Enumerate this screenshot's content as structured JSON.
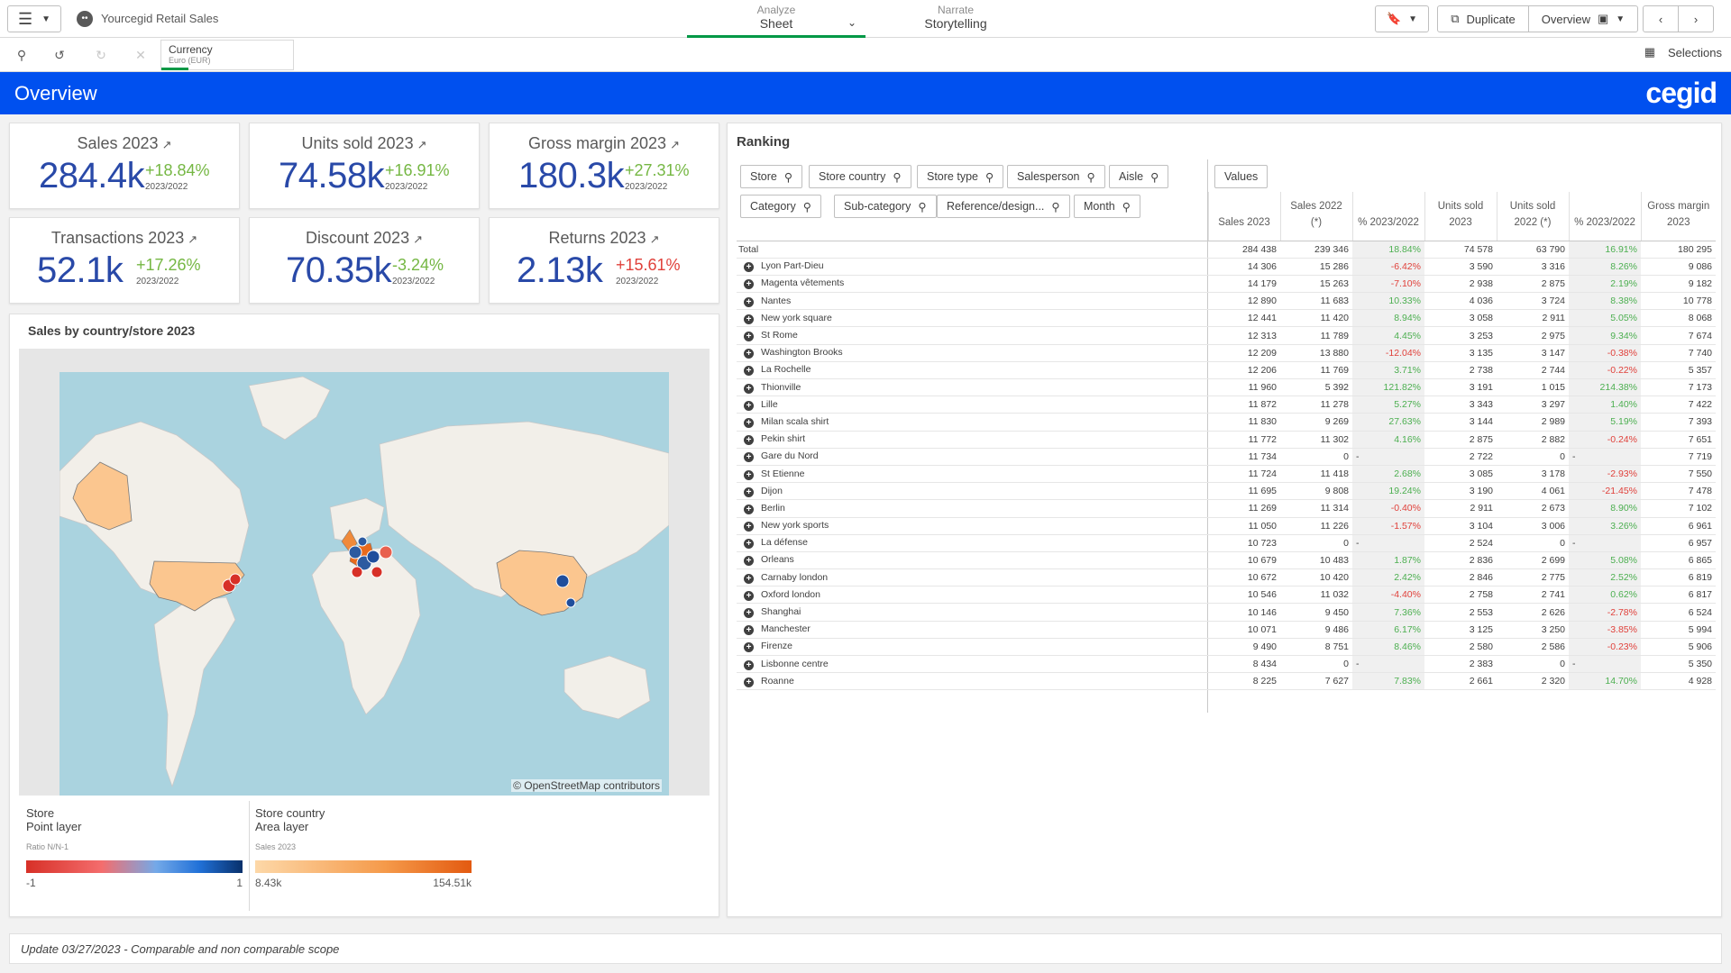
{
  "topbar": {
    "app_title": "Yourcegid Retail Sales",
    "analyze_small": "Analyze",
    "analyze_big": "Sheet",
    "narrate_small": "Narrate",
    "narrate_big": "Storytelling",
    "duplicate_label": "Duplicate",
    "overview_label": "Overview",
    "icons": [
      "menu-icon",
      "app-logo-icon",
      "bookmark-icon",
      "duplicate-icon",
      "presentation-icon",
      "chevron-left-icon",
      "chevron-right-icon"
    ]
  },
  "toolbar": {
    "currency_title": "Currency",
    "currency_value": "Euro (EUR)",
    "selections_label": "Selections"
  },
  "header": {
    "title": "Overview",
    "brand": "cegid",
    "band_color": "#0050ef"
  },
  "kpis": [
    {
      "title": "Sales 2023",
      "value": "284.4k",
      "delta": "+18.84%",
      "delta_type": "pos",
      "period": "2023/2022"
    },
    {
      "title": "Units sold 2023",
      "value": "74.58k",
      "delta": "+16.91%",
      "delta_type": "pos",
      "period": "2023/2022"
    },
    {
      "title": "Gross margin 2023",
      "value": "180.3k",
      "delta": "+27.31%",
      "delta_type": "pos",
      "period": "2023/2022"
    },
    {
      "title": "Transactions 2023",
      "value": "52.1k",
      "delta": "+17.26%",
      "delta_type": "pos",
      "period": "2023/2022"
    },
    {
      "title": "Discount 2023",
      "value": "70.35k",
      "delta": "-3.24%",
      "delta_type": "pos",
      "period": "2023/2022"
    },
    {
      "title": "Returns 2023",
      "value": "2.13k",
      "delta": "+15.61%",
      "delta_type": "neg",
      "period": "2023/2022"
    }
  ],
  "map": {
    "title": "Sales by country/store 2023",
    "credit": "© OpenStreetMap contributors",
    "legend_store": {
      "l1": "Store",
      "l2": "Point layer",
      "l3": "Ratio N/N-1",
      "min": "-1",
      "max": "1"
    },
    "legend_country": {
      "l1": "Store country",
      "l2": "Area layer",
      "l3": "Sales 2023",
      "min": "8.43k",
      "max": "154.51k"
    }
  },
  "ranking": {
    "title": "Ranking",
    "filters_row1": [
      "Store",
      "Store country",
      "Store type",
      "Salesperson",
      "Aisle"
    ],
    "filters_row2": [
      "Category",
      "Sub-category",
      "Reference/design...",
      "Month"
    ],
    "values_label": "Values",
    "columns": [
      "",
      "Sales 2023",
      "Sales 2022 (*)",
      "% 2023/2022",
      "Units sold 2023",
      "Units sold 2022 (*)",
      "% 2023/2022",
      "Gross margin 2023"
    ],
    "total": [
      "Total",
      "284 438",
      "239 346",
      "18.84%",
      "74 578",
      "63 790",
      "16.91%",
      "180 295"
    ],
    "rows": [
      [
        "Lyon Part-Dieu",
        "14 306",
        "15 286",
        "-6.42%",
        "3 590",
        "3 316",
        "8.26%",
        "9 086"
      ],
      [
        "Magenta vêtements",
        "14 179",
        "15 263",
        "-7.10%",
        "2 938",
        "2 875",
        "2.19%",
        "9 182"
      ],
      [
        "Nantes",
        "12 890",
        "11 683",
        "10.33%",
        "4 036",
        "3 724",
        "8.38%",
        "10 778"
      ],
      [
        "New york square",
        "12 441",
        "11 420",
        "8.94%",
        "3 058",
        "2 911",
        "5.05%",
        "8 068"
      ],
      [
        "St Rome",
        "12 313",
        "11 789",
        "4.45%",
        "3 253",
        "2 975",
        "9.34%",
        "7 674"
      ],
      [
        "Washington Brooks",
        "12 209",
        "13 880",
        "-12.04%",
        "3 135",
        "3 147",
        "-0.38%",
        "7 740"
      ],
      [
        "La Rochelle",
        "12 206",
        "11 769",
        "3.71%",
        "2 738",
        "2 744",
        "-0.22%",
        "5 357"
      ],
      [
        "Thionville",
        "11 960",
        "5 392",
        "121.82%",
        "3 191",
        "1 015",
        "214.38%",
        "7 173"
      ],
      [
        "Lille",
        "11 872",
        "11 278",
        "5.27%",
        "3 343",
        "3 297",
        "1.40%",
        "7 422"
      ],
      [
        "Milan scala shirt",
        "11 830",
        "9 269",
        "27.63%",
        "3 144",
        "2 989",
        "5.19%",
        "7 393"
      ],
      [
        "Pekin shirt",
        "11 772",
        "11 302",
        "4.16%",
        "2 875",
        "2 882",
        "-0.24%",
        "7 651"
      ],
      [
        "Gare du Nord",
        "11 734",
        "0",
        "-",
        "2 722",
        "0",
        "-",
        "7 719"
      ],
      [
        "St Etienne",
        "11 724",
        "11 418",
        "2.68%",
        "3 085",
        "3 178",
        "-2.93%",
        "7 550"
      ],
      [
        "Dijon",
        "11 695",
        "9 808",
        "19.24%",
        "3 190",
        "4 061",
        "-21.45%",
        "7 478"
      ],
      [
        "Berlin",
        "11 269",
        "11 314",
        "-0.40%",
        "2 911",
        "2 673",
        "8.90%",
        "7 102"
      ],
      [
        "New york sports",
        "11 050",
        "11 226",
        "-1.57%",
        "3 104",
        "3 006",
        "3.26%",
        "6 961"
      ],
      [
        "La défense",
        "10 723",
        "0",
        "-",
        "2 524",
        "0",
        "-",
        "6 957"
      ],
      [
        "Orleans",
        "10 679",
        "10 483",
        "1.87%",
        "2 836",
        "2 699",
        "5.08%",
        "6 865"
      ],
      [
        "Carnaby london",
        "10 672",
        "10 420",
        "2.42%",
        "2 846",
        "2 775",
        "2.52%",
        "6 819"
      ],
      [
        "Oxford london",
        "10 546",
        "11 032",
        "-4.40%",
        "2 758",
        "2 741",
        "0.62%",
        "6 817"
      ],
      [
        "Shanghai",
        "10 146",
        "9 450",
        "7.36%",
        "2 553",
        "2 626",
        "-2.78%",
        "6 524"
      ],
      [
        "Manchester",
        "10 071",
        "9 486",
        "6.17%",
        "3 125",
        "3 250",
        "-3.85%",
        "5 994"
      ],
      [
        "Firenze",
        "9 490",
        "8 751",
        "8.46%",
        "2 580",
        "2 586",
        "-0.23%",
        "5 906"
      ],
      [
        "Lisbonne centre",
        "8 434",
        "0",
        "-",
        "2 383",
        "0",
        "-",
        "5 350"
      ],
      [
        "Roanne",
        "8 225",
        "7 627",
        "7.83%",
        "2 661",
        "2 320",
        "14.70%",
        "4 928"
      ]
    ]
  },
  "footer": {
    "note": "Update 03/27/2023 - Comparable and non comparable scope"
  }
}
